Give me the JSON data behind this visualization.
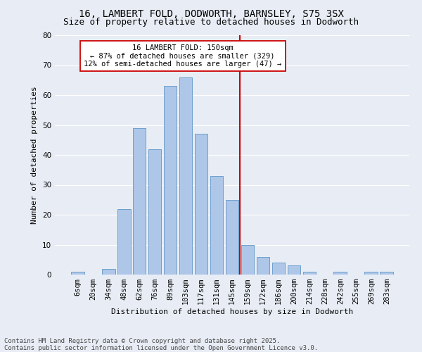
{
  "title": "16, LAMBERT FOLD, DODWORTH, BARNSLEY, S75 3SX",
  "subtitle": "Size of property relative to detached houses in Dodworth",
  "xlabel": "Distribution of detached houses by size in Dodworth",
  "ylabel": "Number of detached properties",
  "bar_labels": [
    "6sqm",
    "20sqm",
    "34sqm",
    "48sqm",
    "62sqm",
    "76sqm",
    "89sqm",
    "103sqm",
    "117sqm",
    "131sqm",
    "145sqm",
    "159sqm",
    "172sqm",
    "186sqm",
    "200sqm",
    "214sqm",
    "228sqm",
    "242sqm",
    "255sqm",
    "269sqm",
    "283sqm"
  ],
  "bar_values": [
    1,
    0,
    2,
    22,
    49,
    42,
    63,
    66,
    47,
    33,
    25,
    10,
    6,
    4,
    3,
    1,
    0,
    1,
    0,
    1,
    1
  ],
  "bar_color": "#aec6e8",
  "bar_edge_color": "#6da0cc",
  "vline_x": 10.5,
  "vline_color": "#cc0000",
  "annotation_text": "16 LAMBERT FOLD: 150sqm\n← 87% of detached houses are smaller (329)\n12% of semi-detached houses are larger (47) →",
  "annotation_box_color": "#ffffff",
  "annotation_box_edge_color": "#cc0000",
  "ylim": [
    0,
    80
  ],
  "yticks": [
    0,
    10,
    20,
    30,
    40,
    50,
    60,
    70,
    80
  ],
  "background_color": "#e8edf5",
  "grid_color": "#ffffff",
  "footnote": "Contains HM Land Registry data © Crown copyright and database right 2025.\nContains public sector information licensed under the Open Government Licence v3.0.",
  "title_fontsize": 10,
  "subtitle_fontsize": 9,
  "axis_label_fontsize": 8,
  "tick_fontsize": 7.5,
  "annotation_fontsize": 7.5,
  "footnote_fontsize": 6.5
}
